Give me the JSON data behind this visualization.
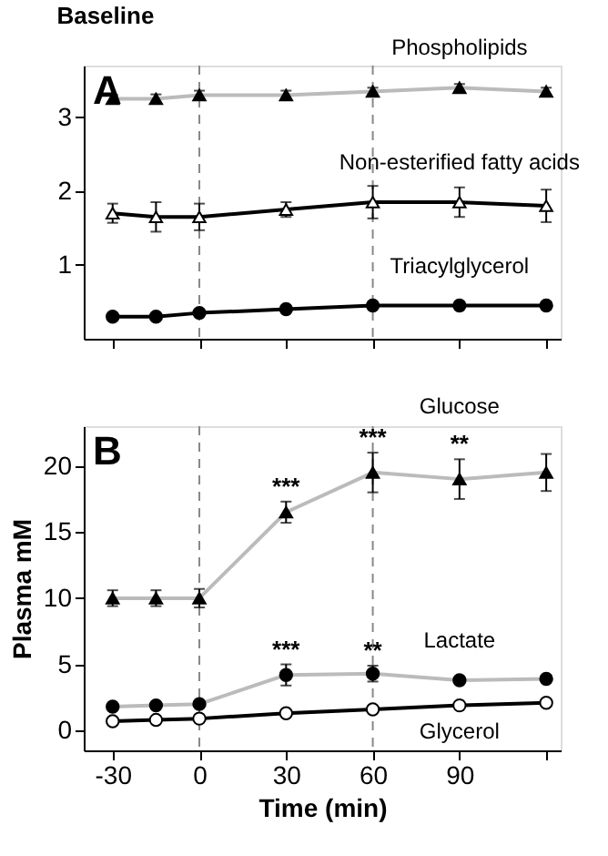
{
  "chart_data": [
    {
      "type": "line",
      "title": "Baseline",
      "annotations": [
        "A"
      ],
      "x": [
        -30,
        -15,
        0,
        30,
        60,
        90,
        120
      ],
      "xlim": [
        -40,
        125
      ],
      "xticks": [
        {
          "value": -30,
          "label": null
        },
        {
          "value": 0,
          "label": null
        },
        {
          "value": 30,
          "label": null
        },
        {
          "value": 60,
          "label": null
        },
        {
          "value": 90,
          "label": null
        },
        {
          "value": 120,
          "label": null
        }
      ],
      "ylim": [
        0,
        3.7
      ],
      "yticks": [
        1,
        2,
        3
      ],
      "tick_labels": "y",
      "grid": false,
      "legend": false,
      "line_style": "solid",
      "ref_lines": [
        {
          "axis": "x",
          "value": 0,
          "line_style": "dashed",
          "color": "#888888"
        },
        {
          "axis": "x",
          "value": 60,
          "line_style": "dashed",
          "color": "#888888"
        }
      ],
      "series": [
        {
          "name": "Phospholipids",
          "color": "#000000",
          "marker": "triangle",
          "values": [
            3.25,
            3.25,
            3.3,
            3.3,
            3.35,
            3.4,
            3.35
          ],
          "errors": [
            0.05,
            0.06,
            0.06,
            0.06,
            0.05,
            0.05,
            0.05
          ]
        },
        {
          "name": "Non-esterified fatty acids",
          "color": "#ffffff",
          "marker": "triangle",
          "values": [
            1.7,
            1.65,
            1.65,
            1.75,
            1.85,
            1.85,
            1.8
          ],
          "errors": [
            0.13,
            0.2,
            0.18,
            0.1,
            0.22,
            0.2,
            0.22
          ]
        },
        {
          "name": "Triacylglycerol",
          "color": "#000000",
          "marker": "circle",
          "values": [
            0.3,
            0.3,
            0.35,
            0.4,
            0.45,
            0.45,
            0.45
          ]
        }
      ]
    },
    {
      "type": "line",
      "xlabel": "Time (min)",
      "ylabel": "Plasma mM",
      "annotations": [
        "B",
        {
          "text": "***",
          "x": 30,
          "y": 17.3
        },
        {
          "text": "***",
          "x": 60,
          "y": 21.0
        },
        {
          "text": "**",
          "x": 90,
          "y": 20.5
        },
        {
          "text": "***",
          "x": 30,
          "y": 5.0
        },
        {
          "text": "**",
          "x": 60,
          "y": 4.9
        }
      ],
      "x": [
        -30,
        -15,
        0,
        30,
        60,
        90,
        120
      ],
      "xlim": [
        -40,
        125
      ],
      "xticks": [
        -30,
        0,
        30,
        60,
        90,
        {
          "value": 120,
          "label": null
        }
      ],
      "ylim": [
        -1.5,
        23
      ],
      "yticks": [
        0,
        5,
        10,
        15,
        20
      ],
      "grid": false,
      "legend": false,
      "line_style": "solid",
      "ref_lines": [
        {
          "axis": "x",
          "value": 0,
          "line_style": "dashed",
          "color": "#888888"
        },
        {
          "axis": "x",
          "value": 60,
          "line_style": "dashed",
          "color": "#888888"
        }
      ],
      "series": [
        {
          "name": "Glucose",
          "color": "#000000",
          "marker": "triangle",
          "values": [
            10,
            10,
            10,
            16.5,
            19.5,
            19,
            19.5
          ],
          "errors": [
            0.6,
            0.6,
            0.7,
            0.8,
            1.5,
            1.5,
            1.4
          ]
        },
        {
          "name": "Lactate",
          "color": "#000000",
          "marker": "circle",
          "values": [
            1.8,
            1.9,
            2,
            4.2,
            4.3,
            3.8,
            3.9
          ],
          "errors": [
            null,
            null,
            null,
            0.8,
            0.6,
            null,
            null
          ]
        },
        {
          "name": "Glycerol",
          "color": "#ffffff",
          "marker": "circle",
          "values": [
            0.7,
            0.8,
            0.9,
            1.3,
            1.6,
            1.9,
            2.1
          ]
        }
      ]
    }
  ]
}
